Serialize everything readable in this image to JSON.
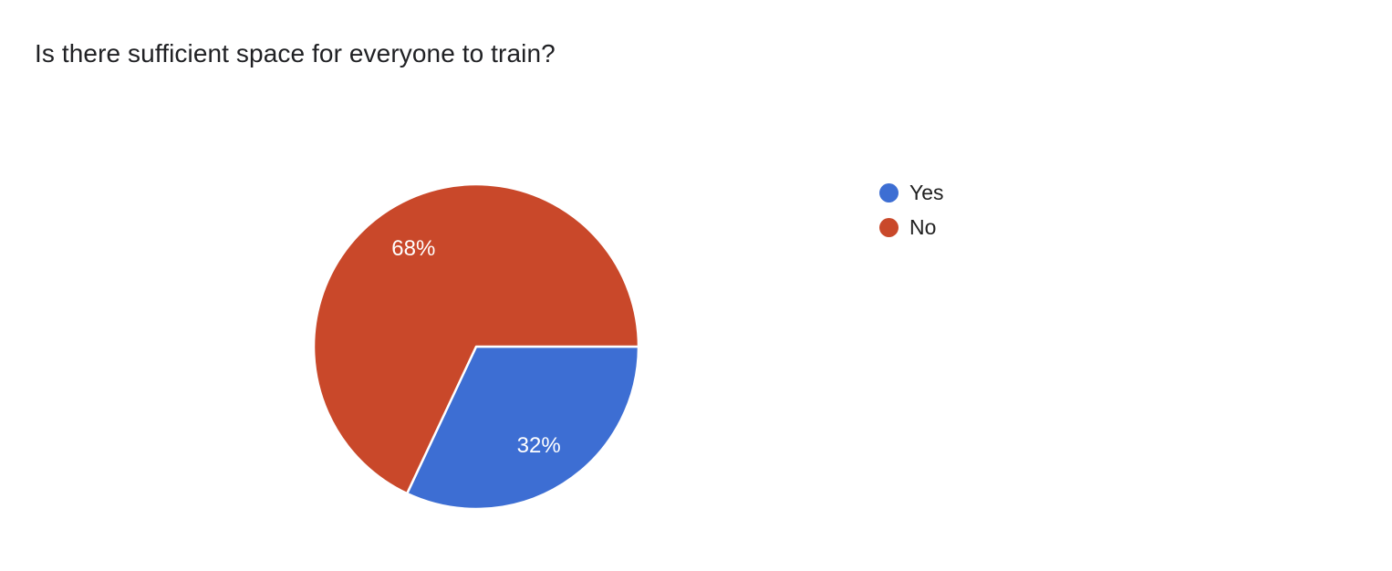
{
  "header": {
    "title": "Is there sufficient space for everyone to train?"
  },
  "chart_data": {
    "type": "pie",
    "title": "Is there sufficient space for everyone to train?",
    "categories": [
      "Yes",
      "No"
    ],
    "values": [
      32,
      68
    ],
    "percent_labels": [
      "32%",
      "68%"
    ],
    "colors": [
      "#3d6ed3",
      "#c9482a"
    ],
    "slice_label_color": "#ffffff",
    "start_angle_deg": 0,
    "direction": "clockwise",
    "legend_position": "right",
    "background": "#ffffff"
  },
  "legend": {
    "items": [
      {
        "label": "Yes",
        "color": "#3d6ed3"
      },
      {
        "label": "No",
        "color": "#c9482a"
      }
    ]
  }
}
